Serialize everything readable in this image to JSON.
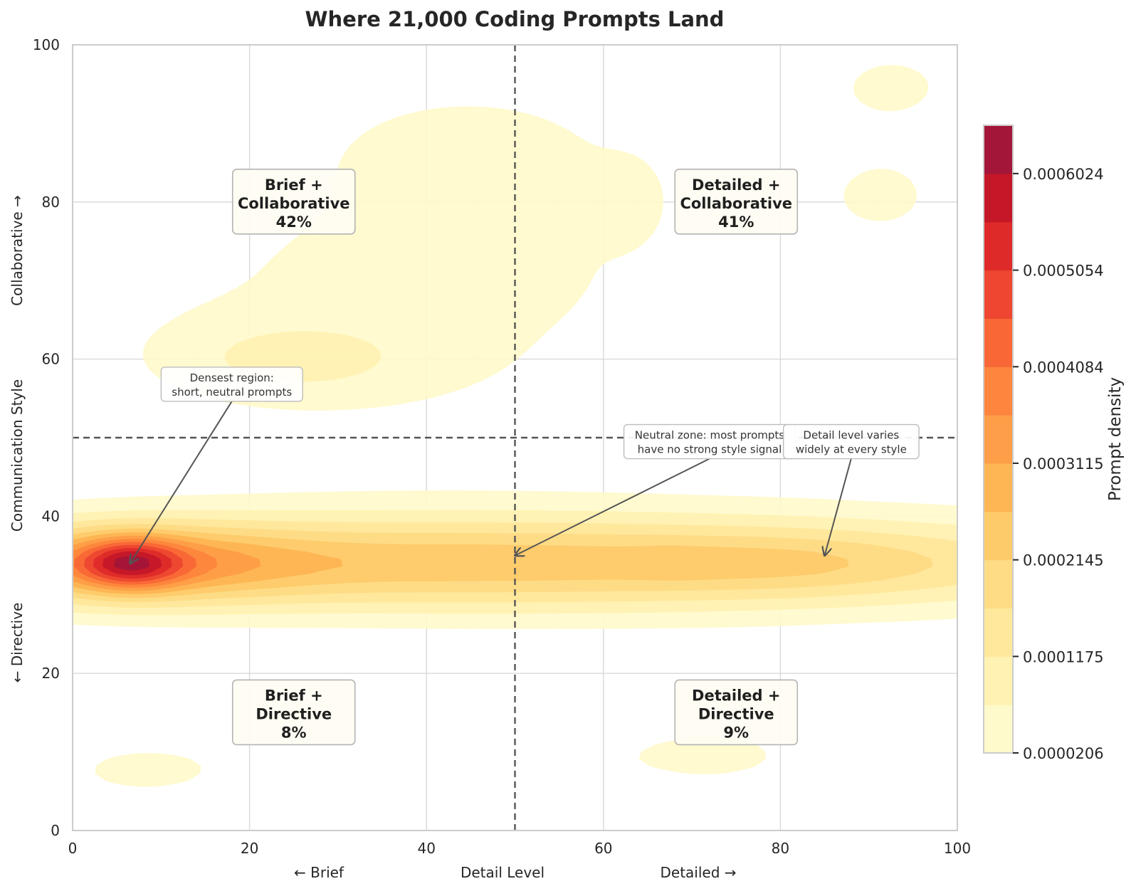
{
  "chart_data": {
    "type": "heatmap",
    "subtype": "filled-density-contour",
    "title": "Where 21,000 Coding Prompts Land",
    "xlabel": "Detail Level",
    "xlabel_left": "← Brief",
    "xlabel_right": "Detailed →",
    "ylabel": "Communication Style",
    "ylabel_bottom": "← Directive",
    "ylabel_top": "Collaborative →",
    "xlim": [
      0,
      100
    ],
    "ylim": [
      0,
      100
    ],
    "x_ticks": [
      0,
      20,
      40,
      60,
      80,
      100
    ],
    "y_ticks": [
      0,
      20,
      40,
      60,
      80,
      100
    ],
    "grid": true,
    "divider_x": 50,
    "divider_y": 50,
    "colorbar": {
      "label": "Prompt density",
      "min": 2.06e-05,
      "max": 0.0006509,
      "ticks": [
        "0.0000206",
        "0.0001175",
        "0.0002145",
        "0.0003115",
        "0.0004084",
        "0.0005054",
        "0.0006024"
      ],
      "tick_values": [
        2.06e-05,
        0.0001175,
        0.0002145,
        0.0003115,
        0.0004084,
        0.0005054,
        0.0006024
      ],
      "levels": 13,
      "colors": [
        "#fffacb",
        "#fff2b2",
        "#ffe89b",
        "#fedc85",
        "#fecb6a",
        "#feb553",
        "#fe9e48",
        "#fd853d",
        "#f96736",
        "#ee4631",
        "#de2a29",
        "#c41728",
        "#a31539"
      ]
    },
    "density_blobs": [
      {
        "cx": 6.5,
        "cy": 34,
        "sx": 4,
        "sy": 2.2,
        "w": 6.3
      },
      {
        "cx": 6.5,
        "cy": 34,
        "sx": 12,
        "sy": 3.2,
        "w": 4.6
      },
      {
        "cx": 45,
        "cy": 34,
        "sx": 55,
        "sy": 4.2,
        "w": 5.6
      },
      {
        "cx": 82,
        "cy": 34,
        "sx": 11,
        "sy": 2.5,
        "w": 1.0
      },
      {
        "cx": 68,
        "cy": 34,
        "sx": 3,
        "sy": 1.6,
        "w": 0.3
      },
      {
        "cx": 50,
        "cy": 34,
        "sx": 60,
        "sy": 6,
        "w": 0.9
      },
      {
        "cx": 25,
        "cy": 60,
        "sx": 10,
        "sy": 3.5,
        "w": 1.85
      },
      {
        "cx": 28,
        "cy": 64,
        "sx": 26,
        "sy": 14,
        "w": 0.65
      },
      {
        "cx": 75,
        "cy": 77,
        "sx": 36,
        "sy": 24,
        "w": 0.8
      },
      {
        "cx": 30,
        "cy": 77,
        "sx": 28,
        "sy": 20,
        "w": 0.5
      },
      {
        "cx": 44,
        "cy": 87,
        "sx": 10,
        "sy": 5,
        "w": 0.7
      },
      {
        "cx": 93,
        "cy": 95,
        "sx": 6,
        "sy": 4,
        "w": 0.9
      },
      {
        "cx": 92,
        "cy": 81,
        "sx": 5,
        "sy": 4,
        "w": 0.7
      },
      {
        "cx": 63,
        "cy": 81,
        "sx": 3,
        "sy": 4,
        "w": 0.35
      },
      {
        "cx": 7,
        "cy": 7.5,
        "sx": 9,
        "sy": 3.5,
        "w": 1.0
      },
      {
        "cx": 45,
        "cy": 9,
        "sx": 28,
        "sy": 6,
        "w": 0.55
      },
      {
        "cx": 76,
        "cy": 10,
        "sx": 14,
        "sy": 7,
        "w": 0.7
      },
      {
        "cx": 50,
        "cy": 9,
        "sx": 50,
        "sy": 7,
        "w": 0.35
      }
    ],
    "quadrant_labels": [
      {
        "line1": "Brief +",
        "line2": "Collaborative",
        "pct": "42%",
        "x": 25,
        "y": 80
      },
      {
        "line1": "Detailed +",
        "line2": "Collaborative",
        "pct": "41%",
        "x": 75,
        "y": 80
      },
      {
        "line1": "Brief +",
        "line2": "Directive",
        "pct": "8%",
        "x": 25,
        "y": 15
      },
      {
        "line1": "Detailed +",
        "line2": "Directive",
        "pct": "9%",
        "x": 75,
        "y": 15
      }
    ],
    "annotations": [
      {
        "line1": "Densest region:",
        "line2": "short, neutral prompts",
        "text_x": 18,
        "text_y": 56.8,
        "arrow_x": 6.5,
        "arrow_y": 34
      },
      {
        "line1": "Neutral zone: most prompts",
        "line2": "have no strong style signal",
        "text_x": 72,
        "text_y": 49.5,
        "arrow_x": 50,
        "arrow_y": 35
      },
      {
        "line1": "Detail level varies",
        "line2": "widely at every style",
        "text_x": 88,
        "text_y": 49.5,
        "arrow_x": 85,
        "arrow_y": 35
      }
    ]
  }
}
